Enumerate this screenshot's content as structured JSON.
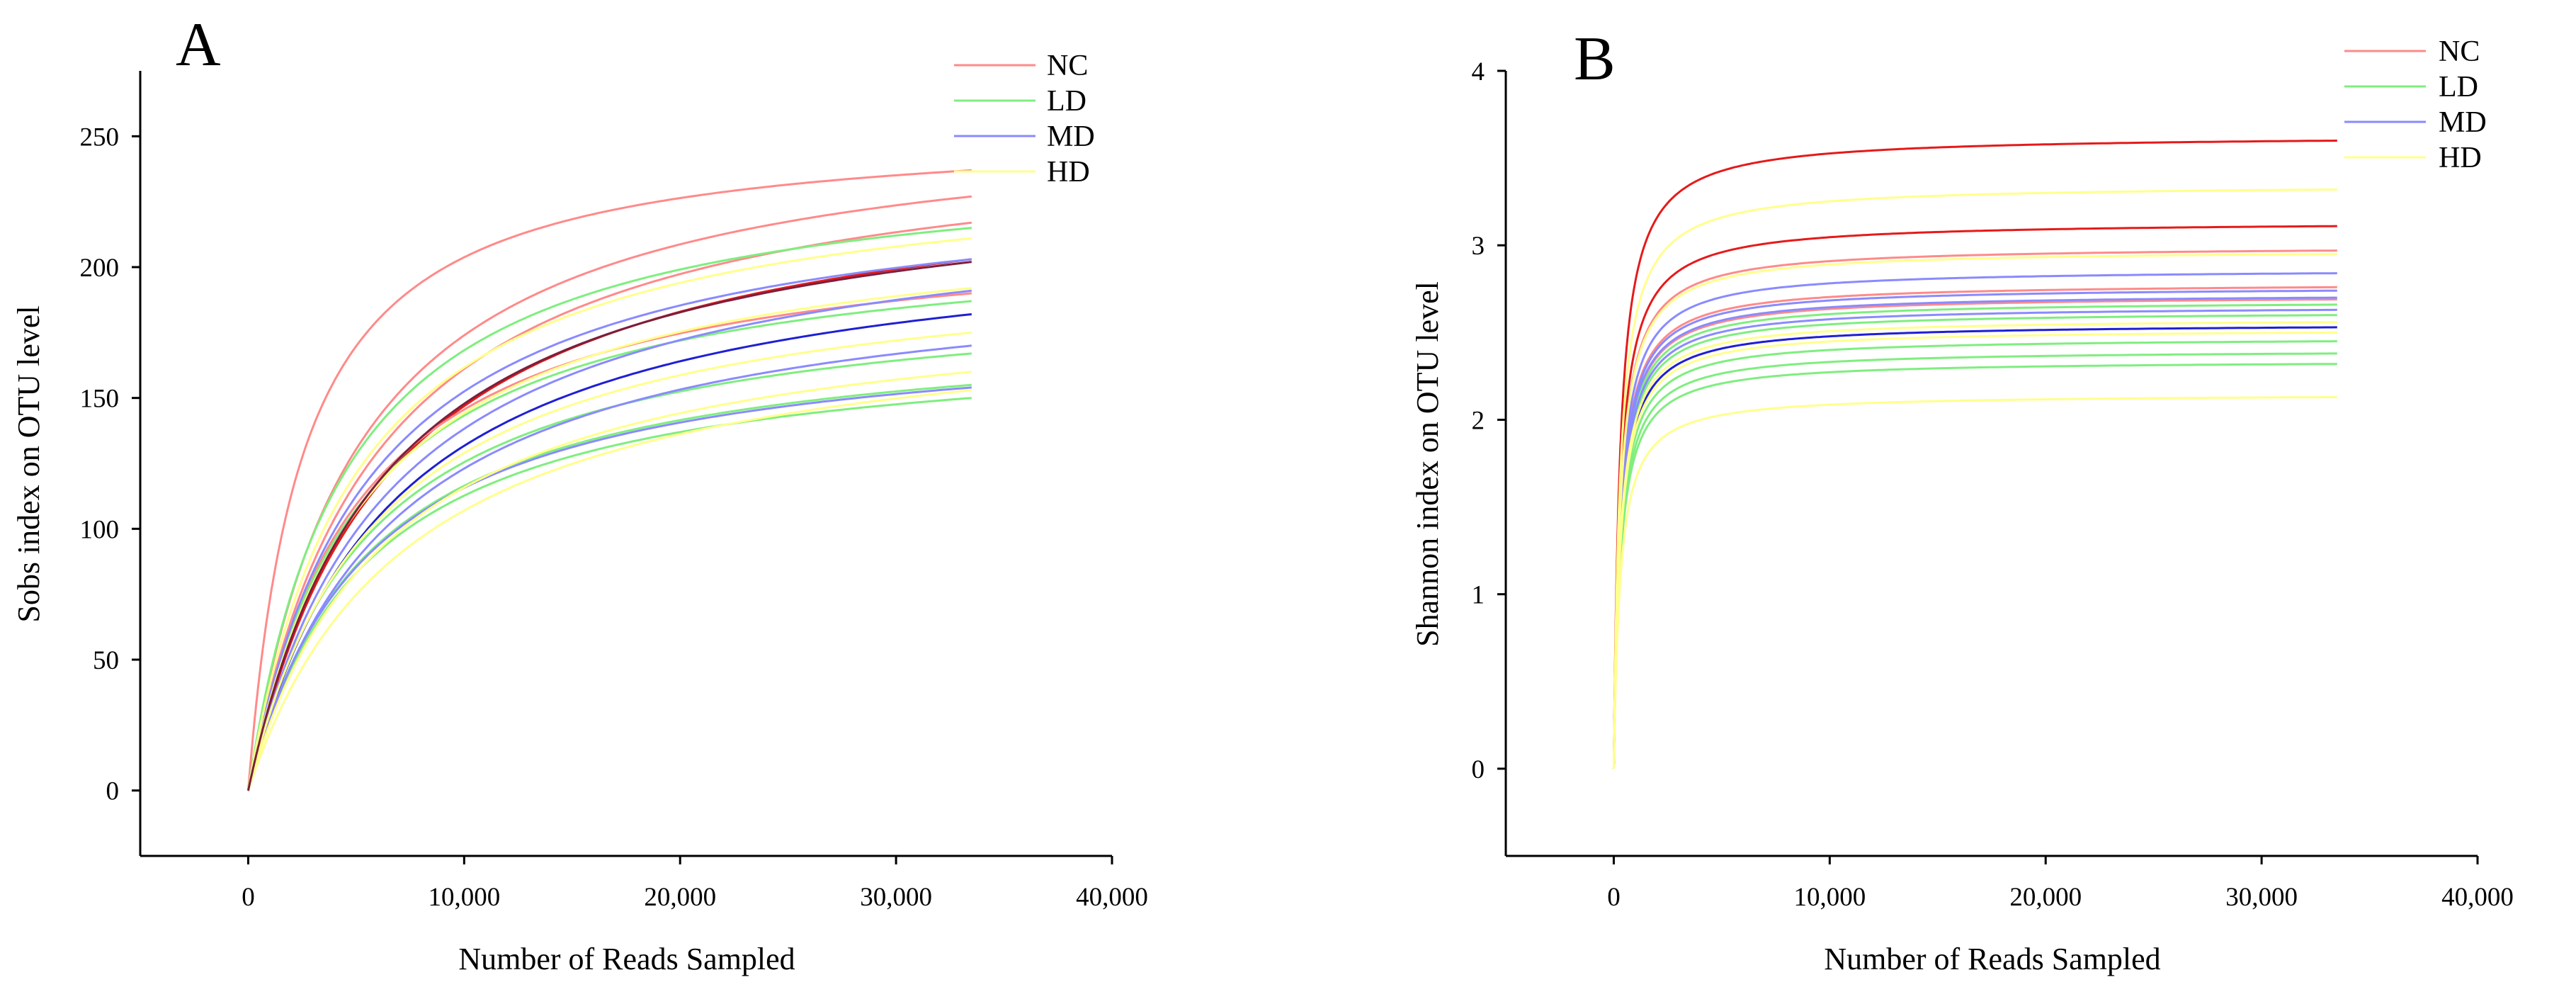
{
  "colors": {
    "NC": "#ff8a8a",
    "LD": "#7fee7f",
    "MD": "#8a8aff",
    "HD": "#ffff8c",
    "NC_dark": "#e51a1a",
    "MD_dark": "#1f1fd4",
    "overlap": "#7a1f3d",
    "axis": "#000000"
  },
  "chart_data": [
    {
      "type": "line",
      "panel_label": "A",
      "title": "",
      "xlabel": "Number of Reads Sampled",
      "ylabel": "Sobs index on OTU level",
      "xlim": [
        -5000,
        40000
      ],
      "ylim": [
        -25,
        275
      ],
      "x_ticks": [
        0,
        10000,
        20000,
        30000,
        40000
      ],
      "x_tick_labels": [
        "0",
        "10,000",
        "20,000",
        "30,000",
        "40,000"
      ],
      "y_ticks": [
        0,
        50,
        100,
        150,
        200,
        250
      ],
      "y_tick_labels": [
        "0",
        "50",
        "100",
        "150",
        "200",
        "250"
      ],
      "legend": [
        {
          "label": "NC",
          "color_key": "NC"
        },
        {
          "label": "LD",
          "color_key": "LD"
        },
        {
          "label": "MD",
          "color_key": "MD"
        },
        {
          "label": "HD",
          "color_key": "HD"
        }
      ],
      "x_end": 33500,
      "series": [
        {
          "name": "NC-1",
          "group": "NC",
          "color_key": "NC",
          "final": 237,
          "k": 2500
        },
        {
          "name": "NC-2",
          "group": "NC",
          "color_key": "NC",
          "final": 227,
          "k": 5000
        },
        {
          "name": "NC-3",
          "group": "NC",
          "color_key": "NC",
          "final": 217,
          "k": 5800
        },
        {
          "name": "NC-4",
          "group": "NC",
          "color_key": "NC_dark",
          "final": 203,
          "k": 6500
        },
        {
          "name": "NC-5",
          "group": "NC",
          "color_key": "NC",
          "final": 190,
          "k": 5000
        },
        {
          "name": "LD-1",
          "group": "LD",
          "color_key": "LD",
          "final": 215,
          "k": 4500
        },
        {
          "name": "LD-2",
          "group": "LD",
          "color_key": "LD",
          "final": 187,
          "k": 5000
        },
        {
          "name": "LD-3",
          "group": "LD",
          "color_key": "LD",
          "final": 167,
          "k": 5500
        },
        {
          "name": "LD-4",
          "group": "LD",
          "color_key": "LD",
          "final": 155,
          "k": 5500
        },
        {
          "name": "LD-5",
          "group": "LD",
          "color_key": "LD",
          "final": 150,
          "k": 5500
        },
        {
          "name": "MD-1",
          "group": "MD",
          "color_key": "MD",
          "final": 203,
          "k": 5500
        },
        {
          "name": "MD-2",
          "group": "MD",
          "color_key": "MD",
          "final": 191,
          "k": 6500
        },
        {
          "name": "MD-3",
          "group": "MD",
          "color_key": "MD_dark",
          "final": 182,
          "k": 6500
        },
        {
          "name": "MD-4",
          "group": "MD",
          "color_key": "MD",
          "final": 170,
          "k": 6500
        },
        {
          "name": "MD-5",
          "group": "MD",
          "color_key": "MD",
          "final": 154,
          "k": 5500
        },
        {
          "name": "HD-1",
          "group": "HD",
          "color_key": "HD",
          "final": 211,
          "k": 5000
        },
        {
          "name": "HD-2",
          "group": "HD",
          "color_key": "HD",
          "final": 192,
          "k": 5500
        },
        {
          "name": "HD-3",
          "group": "HD",
          "color_key": "HD",
          "final": 175,
          "k": 6000
        },
        {
          "name": "HD-4",
          "group": "HD",
          "color_key": "HD",
          "final": 160,
          "k": 6500
        },
        {
          "name": "HD-5",
          "group": "HD",
          "color_key": "HD",
          "final": 153,
          "k": 7500
        },
        {
          "name": "NC-MD-overlap",
          "group": "MD",
          "color_key": "overlap",
          "final": 202,
          "k": 6200
        }
      ]
    },
    {
      "type": "line",
      "panel_label": "B",
      "title": "",
      "xlabel": "Number of Reads Sampled",
      "ylabel": "Shannon index on OTU level",
      "xlim": [
        -5000,
        40000
      ],
      "ylim": [
        -0.5,
        4.0
      ],
      "x_ticks": [
        0,
        10000,
        20000,
        30000,
        40000
      ],
      "x_tick_labels": [
        "0",
        "10,000",
        "20,000",
        "30,000",
        "40,000"
      ],
      "y_ticks": [
        0,
        1,
        2,
        3,
        4
      ],
      "y_tick_labels": [
        "0",
        "1",
        "2",
        "3",
        "4"
      ],
      "legend": [
        {
          "label": "NC",
          "color_key": "NC"
        },
        {
          "label": "LD",
          "color_key": "LD"
        },
        {
          "label": "MD",
          "color_key": "MD"
        },
        {
          "label": "HD",
          "color_key": "HD"
        }
      ],
      "x_end": 33500,
      "series": [
        {
          "name": "NC-1",
          "group": "NC",
          "color_key": "NC_dark",
          "final": 3.6,
          "k": 300
        },
        {
          "name": "NC-2",
          "group": "NC",
          "color_key": "NC_dark",
          "final": 3.11,
          "k": 300
        },
        {
          "name": "NC-3",
          "group": "NC",
          "color_key": "NC",
          "final": 2.97,
          "k": 300
        },
        {
          "name": "NC-4",
          "group": "NC",
          "color_key": "NC",
          "final": 2.76,
          "k": 300
        },
        {
          "name": "NC-5",
          "group": "NC",
          "color_key": "NC",
          "final": 2.69,
          "k": 300
        },
        {
          "name": "LD-1",
          "group": "LD",
          "color_key": "LD",
          "final": 2.66,
          "k": 300
        },
        {
          "name": "LD-2",
          "group": "LD",
          "color_key": "LD",
          "final": 2.6,
          "k": 300
        },
        {
          "name": "LD-3",
          "group": "LD",
          "color_key": "LD",
          "final": 2.45,
          "k": 300
        },
        {
          "name": "LD-4",
          "group": "LD",
          "color_key": "LD",
          "final": 2.38,
          "k": 300
        },
        {
          "name": "LD-5",
          "group": "LD",
          "color_key": "LD",
          "final": 2.32,
          "k": 300
        },
        {
          "name": "MD-1",
          "group": "MD",
          "color_key": "MD",
          "final": 2.84,
          "k": 300
        },
        {
          "name": "MD-2",
          "group": "MD",
          "color_key": "MD",
          "final": 2.74,
          "k": 300
        },
        {
          "name": "MD-3",
          "group": "MD",
          "color_key": "MD",
          "final": 2.7,
          "k": 300
        },
        {
          "name": "MD-4",
          "group": "MD",
          "color_key": "MD",
          "final": 2.63,
          "k": 300
        },
        {
          "name": "MD-5",
          "group": "MD",
          "color_key": "MD_dark",
          "final": 2.53,
          "k": 300
        },
        {
          "name": "HD-1",
          "group": "HD",
          "color_key": "HD",
          "final": 3.32,
          "k": 300
        },
        {
          "name": "HD-2",
          "group": "HD",
          "color_key": "HD",
          "final": 2.95,
          "k": 300
        },
        {
          "name": "HD-3",
          "group": "HD",
          "color_key": "HD",
          "final": 2.56,
          "k": 300
        },
        {
          "name": "HD-4",
          "group": "HD",
          "color_key": "HD",
          "final": 2.5,
          "k": 300
        },
        {
          "name": "HD-5",
          "group": "HD",
          "color_key": "HD",
          "final": 2.13,
          "k": 300
        }
      ]
    }
  ]
}
